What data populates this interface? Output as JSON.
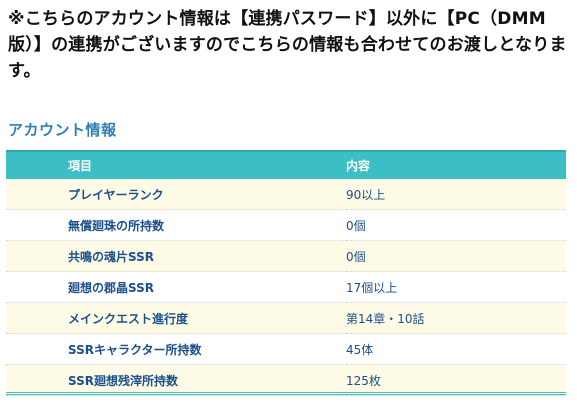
{
  "notice": {
    "text": "※こちらのアカウント情報は【連携パスワード】以外に【PC（DMM版）】の連携がございますのでこちらの情報も合わせてのお渡しとなります。"
  },
  "section": {
    "title": "アカウント情報"
  },
  "table": {
    "headers": {
      "item": "項目",
      "value": "内容"
    },
    "rows": [
      {
        "item": "プレイヤーランク",
        "value": "90以上"
      },
      {
        "item": "無償廻珠の所持数",
        "value": "0個"
      },
      {
        "item": "共鳴の魂片SSR",
        "value": "0個"
      },
      {
        "item": "廻想の郡晶SSR",
        "value": "17個以上"
      },
      {
        "item": "メインクエスト進行度",
        "value": "第14章・10話"
      },
      {
        "item": "SSRキャラクター所持数",
        "value": "45体"
      },
      {
        "item": "SSR廻想残滓所持数",
        "value": "125枚"
      }
    ]
  },
  "colors": {
    "header_bg": "#3bbfc4",
    "title_blue": "#2f7fb5",
    "cell_text": "#1c4f8c",
    "stripe_bg": "#fdfbe6"
  }
}
